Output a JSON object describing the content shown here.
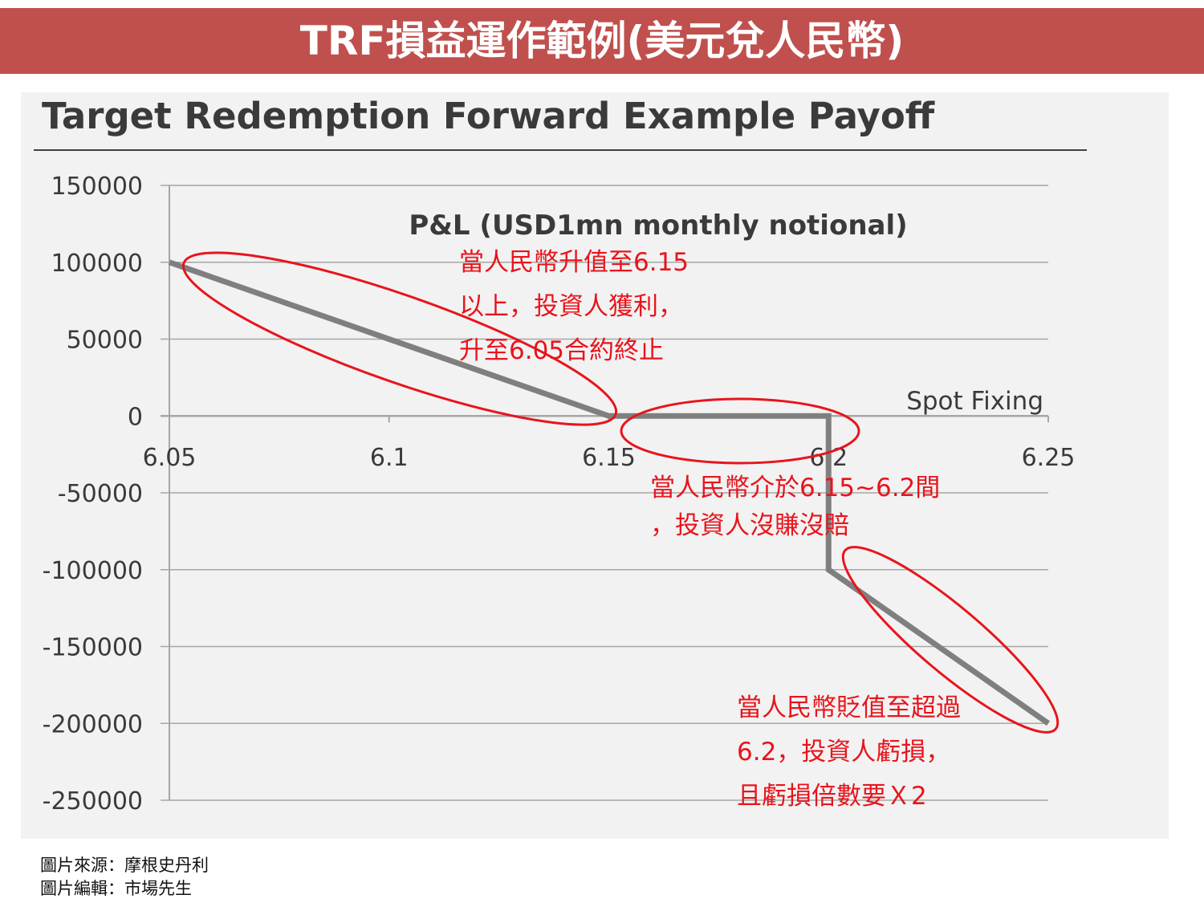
{
  "header": {
    "banner_title": "TRF損益運作範例(美元兌人民幣)"
  },
  "chart_data": {
    "type": "line",
    "title": "Target Redemption Forward Example Payoff",
    "subtitle": "P&L (USD1mn monthly notional)",
    "xlabel": "Spot Fixing",
    "ylabel": "",
    "xlim": [
      6.05,
      6.25
    ],
    "ylim": [
      -250000,
      150000
    ],
    "x_ticks": [
      "6.05",
      "6.1",
      "6.15",
      "6.2",
      "6.25"
    ],
    "y_ticks": [
      "150000",
      "100000",
      "50000",
      "0",
      "-50000",
      "-100000",
      "-150000",
      "-200000",
      "-250000"
    ],
    "grid": true,
    "series": [
      {
        "x": [
          6.05,
          6.15,
          6.2,
          6.2,
          6.25
        ],
        "y": [
          100000,
          0,
          0,
          -100000,
          -200000
        ]
      }
    ],
    "highlights": [
      {
        "cx": 6.15,
        "cy": 0
      },
      {
        "cx": 6.2,
        "cy": 0
      },
      {
        "cx": 6.25,
        "cy": -200000
      }
    ],
    "colors": {
      "line": "#7f7f7f",
      "grid": "#a6a6a6",
      "highlight": "#e8141c",
      "banner": "#c0504d"
    }
  },
  "annotations": [
    "當人民幣升值至6.15\n以上，投資人獲利，\n升至6.05合約終止",
    "當人民幣介於6.15~6.2間\n，投資人沒賺沒賠",
    "當人民幣貶值至超過\n6.2，投資人虧損，\n且虧損倍數要Ｘ2"
  ],
  "credits": {
    "source": "圖片來源：摩根史丹利",
    "editor": "圖片編輯：市場先生"
  }
}
